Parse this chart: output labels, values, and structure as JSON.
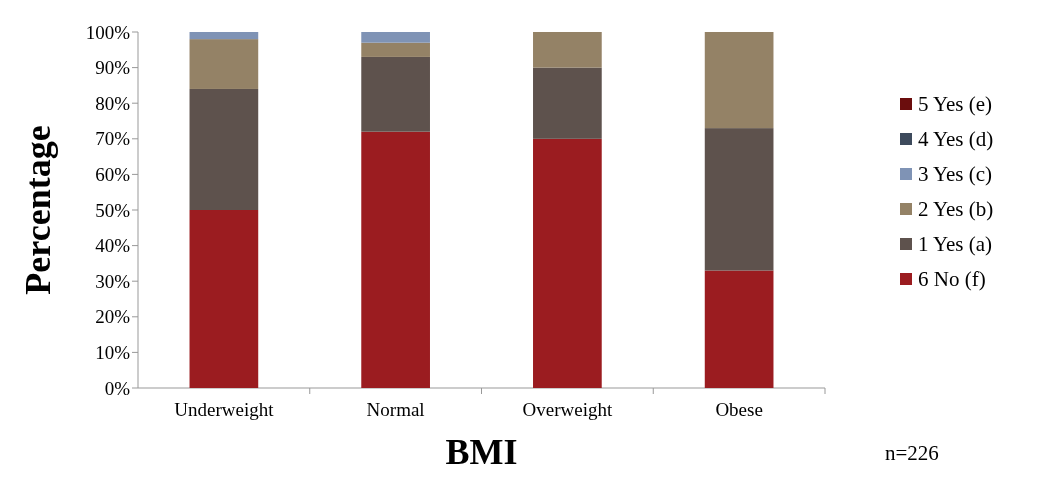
{
  "chart_data": {
    "type": "bar",
    "stacked": true,
    "xlabel": "BMI",
    "ylabel": "Percentage",
    "categories": [
      "Underweight",
      "Normal",
      "Overweight",
      "Obese"
    ],
    "series": [
      {
        "name": "6 No (f)",
        "color": "#9b1c20",
        "values": [
          50,
          72,
          70,
          33
        ]
      },
      {
        "name": "1 Yes (a)",
        "color": "#5e524d",
        "values": [
          34,
          21,
          20,
          40
        ]
      },
      {
        "name": "2 Yes (b)",
        "color": "#948266",
        "values": [
          14,
          4,
          10,
          27
        ]
      },
      {
        "name": "3 Yes (c)",
        "color": "#7f93b5",
        "values": [
          2,
          3,
          0,
          0
        ]
      },
      {
        "name": "4 Yes (d)",
        "color": "#3d4a5c",
        "values": [
          0,
          0,
          0,
          0
        ]
      },
      {
        "name": "5 Yes (e)",
        "color": "#6b0d0d",
        "values": [
          0,
          0,
          0,
          0
        ]
      }
    ],
    "ylim": [
      0,
      100
    ],
    "yticks": [
      {
        "value": 0,
        "label": "0%"
      },
      {
        "value": 10,
        "label": "10%"
      },
      {
        "value": 20,
        "label": "20%"
      },
      {
        "value": 30,
        "label": "30%"
      },
      {
        "value": 40,
        "label": "40%"
      },
      {
        "value": 50,
        "label": "50%"
      },
      {
        "value": 60,
        "label": "60%"
      },
      {
        "value": 70,
        "label": "70%"
      },
      {
        "value": 80,
        "label": "80%"
      },
      {
        "value": 90,
        "label": "90%"
      },
      {
        "value": 100,
        "label": "100%"
      }
    ],
    "legend": "right",
    "annotations": [
      "n=226"
    ]
  }
}
